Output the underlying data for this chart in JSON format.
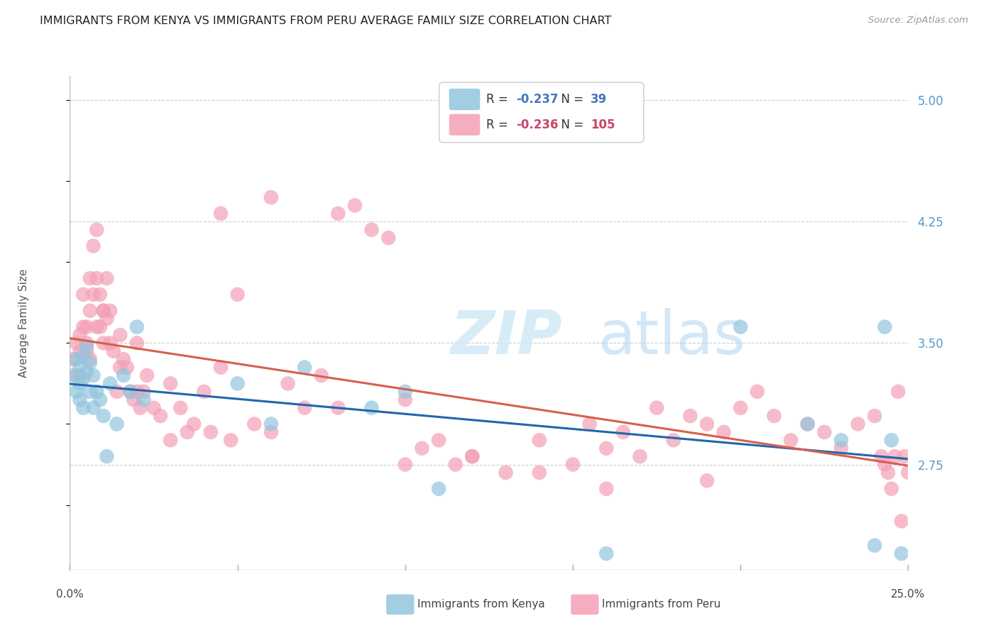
{
  "title": "IMMIGRANTS FROM KENYA VS IMMIGRANTS FROM PERU AVERAGE FAMILY SIZE CORRELATION CHART",
  "source": "Source: ZipAtlas.com",
  "ylabel": "Average Family Size",
  "right_yticks": [
    2.75,
    3.5,
    4.25,
    5.0
  ],
  "xlim": [
    0.0,
    0.25
  ],
  "ylim": [
    2.1,
    5.15
  ],
  "kenya_R": -0.237,
  "kenya_N": 39,
  "peru_R": -0.236,
  "peru_N": 105,
  "kenya_color": "#92c5de",
  "peru_color": "#f4a0b5",
  "kenya_line_color": "#2166ac",
  "peru_line_color": "#d6604d",
  "background_color": "#ffffff",
  "grid_color": "#cccccc",
  "title_color": "#222222",
  "kenya_x": [
    0.001,
    0.002,
    0.002,
    0.003,
    0.003,
    0.003,
    0.004,
    0.004,
    0.004,
    0.005,
    0.005,
    0.006,
    0.006,
    0.007,
    0.007,
    0.008,
    0.009,
    0.01,
    0.011,
    0.012,
    0.014,
    0.016,
    0.018,
    0.02,
    0.022,
    0.05,
    0.06,
    0.07,
    0.09,
    0.1,
    0.11,
    0.16,
    0.2,
    0.22,
    0.23,
    0.24,
    0.243,
    0.245,
    0.248
  ],
  "kenya_y": [
    3.3,
    3.2,
    3.4,
    3.25,
    3.35,
    3.15,
    3.28,
    3.42,
    3.1,
    3.32,
    3.48,
    3.38,
    3.2,
    3.1,
    3.3,
    3.2,
    3.15,
    3.05,
    2.8,
    3.25,
    3.0,
    3.3,
    3.2,
    3.6,
    3.15,
    3.25,
    3.0,
    3.35,
    3.1,
    3.2,
    2.6,
    2.2,
    3.6,
    3.0,
    2.9,
    2.25,
    3.6,
    2.9,
    2.2
  ],
  "peru_x": [
    0.001,
    0.002,
    0.002,
    0.003,
    0.003,
    0.003,
    0.004,
    0.004,
    0.005,
    0.005,
    0.005,
    0.006,
    0.006,
    0.006,
    0.007,
    0.007,
    0.008,
    0.008,
    0.008,
    0.009,
    0.009,
    0.01,
    0.01,
    0.011,
    0.011,
    0.012,
    0.012,
    0.013,
    0.014,
    0.015,
    0.015,
    0.016,
    0.017,
    0.018,
    0.019,
    0.02,
    0.021,
    0.022,
    0.023,
    0.025,
    0.027,
    0.03,
    0.033,
    0.035,
    0.037,
    0.04,
    0.042,
    0.045,
    0.048,
    0.05,
    0.055,
    0.06,
    0.065,
    0.07,
    0.075,
    0.08,
    0.085,
    0.09,
    0.095,
    0.1,
    0.105,
    0.11,
    0.115,
    0.12,
    0.13,
    0.14,
    0.15,
    0.155,
    0.16,
    0.165,
    0.17,
    0.175,
    0.18,
    0.185,
    0.19,
    0.195,
    0.2,
    0.205,
    0.21,
    0.215,
    0.22,
    0.225,
    0.23,
    0.235,
    0.24,
    0.242,
    0.243,
    0.244,
    0.245,
    0.246,
    0.247,
    0.248,
    0.249,
    0.25,
    0.19,
    0.16,
    0.14,
    0.12,
    0.1,
    0.08,
    0.06,
    0.045,
    0.03,
    0.02,
    0.01
  ],
  "peru_y": [
    3.4,
    3.5,
    3.3,
    3.55,
    3.45,
    3.3,
    3.8,
    3.6,
    3.5,
    3.6,
    3.45,
    3.9,
    3.7,
    3.4,
    4.1,
    3.8,
    4.2,
    3.9,
    3.6,
    3.8,
    3.6,
    3.7,
    3.5,
    3.9,
    3.65,
    3.7,
    3.5,
    3.45,
    3.2,
    3.55,
    3.35,
    3.4,
    3.35,
    3.2,
    3.15,
    3.5,
    3.1,
    3.2,
    3.3,
    3.1,
    3.05,
    3.25,
    3.1,
    2.95,
    3.0,
    3.2,
    2.95,
    3.35,
    2.9,
    3.8,
    3.0,
    2.95,
    3.25,
    3.1,
    3.3,
    4.3,
    4.35,
    4.2,
    4.15,
    3.15,
    2.85,
    2.9,
    2.75,
    2.8,
    2.7,
    2.9,
    2.75,
    3.0,
    2.85,
    2.95,
    2.8,
    3.1,
    2.9,
    3.05,
    3.0,
    2.95,
    3.1,
    3.2,
    3.05,
    2.9,
    3.0,
    2.95,
    2.85,
    3.0,
    3.05,
    2.8,
    2.75,
    2.7,
    2.6,
    2.8,
    3.2,
    2.4,
    2.8,
    2.7,
    2.65,
    2.6,
    2.7,
    2.8,
    2.75,
    3.1,
    4.4,
    4.3,
    2.9,
    3.2,
    3.7
  ]
}
